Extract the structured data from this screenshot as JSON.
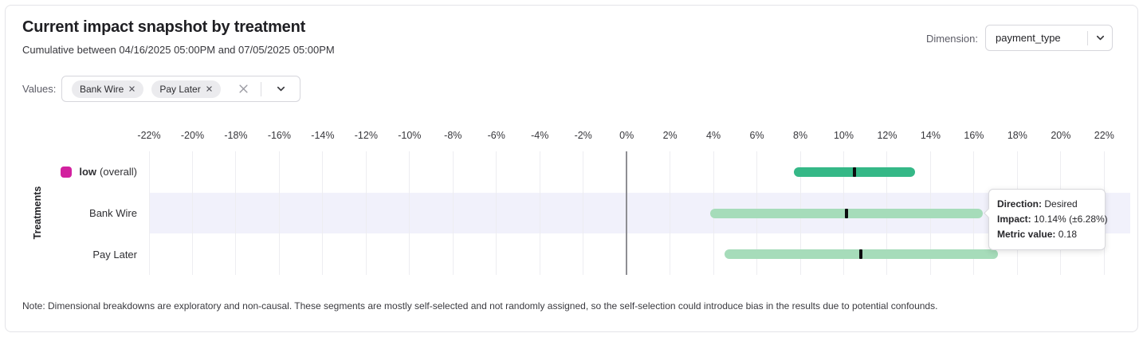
{
  "header": {
    "title": "Current impact snapshot by treatment",
    "subtitle": "Cumulative between 04/16/2025 05:00PM and 07/05/2025 05:00PM",
    "dimension_label": "Dimension:",
    "dimension_value": "payment_type"
  },
  "filters": {
    "values_label": "Values:",
    "chips": [
      {
        "label": "Bank Wire"
      },
      {
        "label": "Pay Later"
      }
    ]
  },
  "chart_data": {
    "type": "range_bar",
    "orientation": "horizontal",
    "x_unit": "%",
    "xlim": [
      -22,
      23.2
    ],
    "ylabel": "Treatments",
    "grid": true,
    "ticks": [
      {
        "value": -22,
        "label": "-22%"
      },
      {
        "value": -20,
        "label": "-20%"
      },
      {
        "value": -18,
        "label": "-18%"
      },
      {
        "value": -16,
        "label": "-16%"
      },
      {
        "value": -14,
        "label": "-14%"
      },
      {
        "value": -12,
        "label": "-12%"
      },
      {
        "value": -10,
        "label": "-10%"
      },
      {
        "value": -8,
        "label": "-8%"
      },
      {
        "value": -6,
        "label": "-6%"
      },
      {
        "value": -4,
        "label": "-4%"
      },
      {
        "value": -2,
        "label": "-2%"
      },
      {
        "value": 0,
        "label": "0%"
      },
      {
        "value": 2,
        "label": "2%"
      },
      {
        "value": 4,
        "label": "4%"
      },
      {
        "value": 6,
        "label": "6%"
      },
      {
        "value": 8,
        "label": "8%"
      },
      {
        "value": 10,
        "label": "10%"
      },
      {
        "value": 12,
        "label": "12%"
      },
      {
        "value": 14,
        "label": "14%"
      },
      {
        "value": 16,
        "label": "16%"
      },
      {
        "value": 18,
        "label": "18%"
      },
      {
        "value": 20,
        "label": "20%"
      },
      {
        "value": 22,
        "label": "22%"
      }
    ],
    "rows": [
      {
        "name": "low-overall",
        "label": "low",
        "label_note": "(overall)",
        "legend_color": "#d2219f",
        "impact": 10.5,
        "margin": 2.8,
        "bar_color": "#35b887",
        "highlighted": false
      },
      {
        "name": "bank-wire",
        "label": "Bank Wire",
        "label_note": "",
        "legend_color": "",
        "impact": 10.14,
        "margin": 6.28,
        "bar_color": "#a6dcba",
        "highlighted": true
      },
      {
        "name": "pay-later",
        "label": "Pay Later",
        "label_note": "",
        "legend_color": "",
        "impact": 10.8,
        "margin": 6.3,
        "bar_color": "#a6dcba",
        "highlighted": false
      }
    ],
    "colors": {
      "zero_line": "#8e8e93",
      "gridline": "#ededf1",
      "highlight_band": "#f1f1fb",
      "marker": "#0d0d0f"
    }
  },
  "tooltip": {
    "rows": [
      {
        "label": "Direction:",
        "value": "Desired"
      },
      {
        "label": "Impact:",
        "value": "10.14% (±6.28%)"
      },
      {
        "label": "Metric value:",
        "value": "0.18"
      }
    ]
  },
  "note": "Note: Dimensional breakdowns are exploratory and non-causal. These segments are mostly self-selected and not randomly assigned, so the self-selection could introduce bias in the results due to potential confounds."
}
